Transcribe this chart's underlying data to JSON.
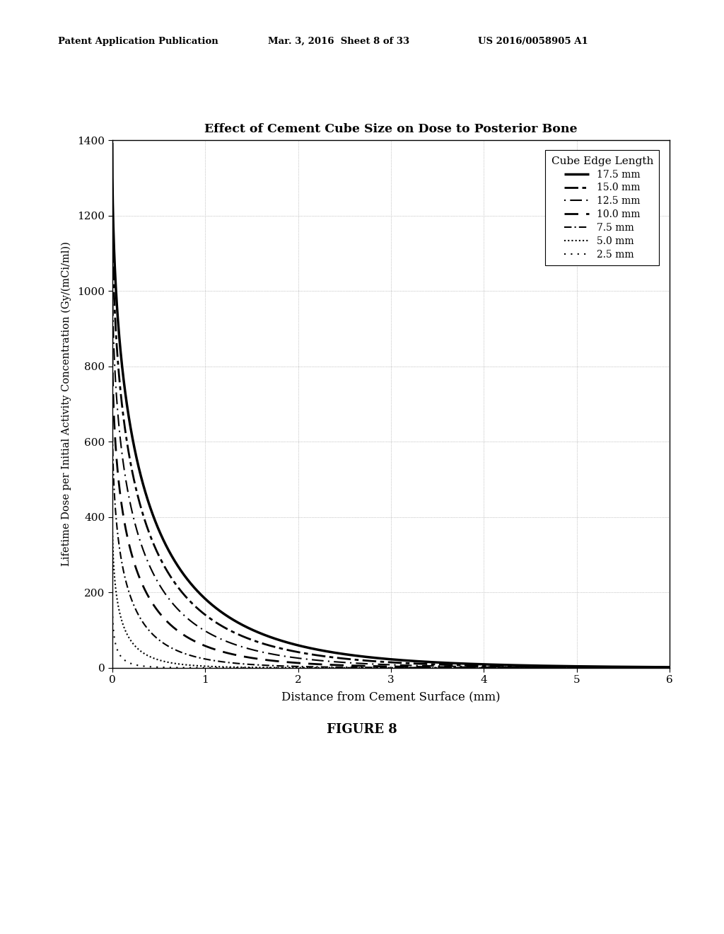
{
  "title": "Effect of Cement Cube Size on Dose to Posterior Bone",
  "xlabel": "Distance from Cement Surface (mm)",
  "ylabel": "Lifetime Dose per Initial Activity Concentration (Gy/(mCi/ml))",
  "figure_label": "FIGURE 8",
  "header_left": "Patent Application Publication",
  "header_center": "Mar. 3, 2016  Sheet 8 of 33",
  "header_right": "US 2016/0058905 A1",
  "xlim": [
    0,
    6
  ],
  "ylim": [
    0,
    1400
  ],
  "xticks": [
    0,
    1,
    2,
    3,
    4,
    5,
    6
  ],
  "yticks": [
    0,
    200,
    400,
    600,
    800,
    1000,
    1200,
    1400
  ],
  "legend_title": "Cube Edge Length",
  "series": [
    {
      "label": "17.5 mm",
      "peak": 1395,
      "k1": 1.55,
      "k2": 0.48,
      "lw": 2.5
    },
    {
      "label": "15.0 mm",
      "peak": 1270,
      "k1": 1.68,
      "k2": 0.52,
      "lw": 2.0
    },
    {
      "label": "12.5 mm",
      "peak": 1100,
      "k1": 1.85,
      "k2": 0.57,
      "lw": 1.5
    },
    {
      "label": "10.0 mm",
      "peak": 900,
      "k1": 2.1,
      "k2": 0.64,
      "lw": 2.0
    },
    {
      "label": "7.5 mm",
      "peak": 700,
      "k1": 2.6,
      "k2": 0.8,
      "lw": 1.5
    },
    {
      "label": "5.0 mm",
      "peak": 430,
      "k1": 3.5,
      "k2": 1.1,
      "lw": 1.5
    },
    {
      "label": "2.5 mm",
      "peak": 190,
      "k1": 5.5,
      "k2": 1.7,
      "lw": 1.5
    }
  ],
  "background_color": "#ffffff",
  "plot_bg_color": "#ffffff",
  "grid_color": "#999999",
  "text_color": "#000000"
}
